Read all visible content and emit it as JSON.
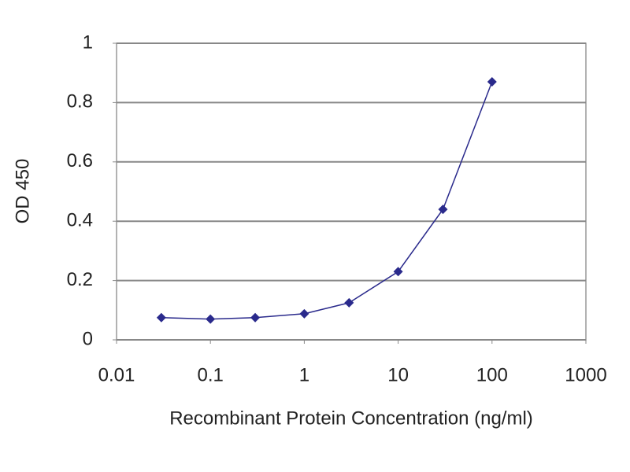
{
  "chart_data": {
    "type": "line",
    "x_label": "Recombinant Protein Concentration (ng/ml)",
    "y_label": "OD 450",
    "x_scale": "log",
    "xlim": [
      0.01,
      1000
    ],
    "xticks": [
      0.01,
      0.1,
      1,
      10,
      100,
      1000
    ],
    "ylim": [
      0,
      1
    ],
    "yticks": [
      0,
      0.2,
      0.4,
      0.6,
      0.8,
      1
    ],
    "grid": true,
    "series": [
      {
        "color": "#2a2a8c",
        "x": [
          0.03,
          0.1,
          0.3,
          1,
          3,
          10,
          30,
          100
        ],
        "values": [
          0.075,
          0.07,
          0.075,
          0.088,
          0.125,
          0.23,
          0.44,
          0.87
        ]
      }
    ]
  }
}
